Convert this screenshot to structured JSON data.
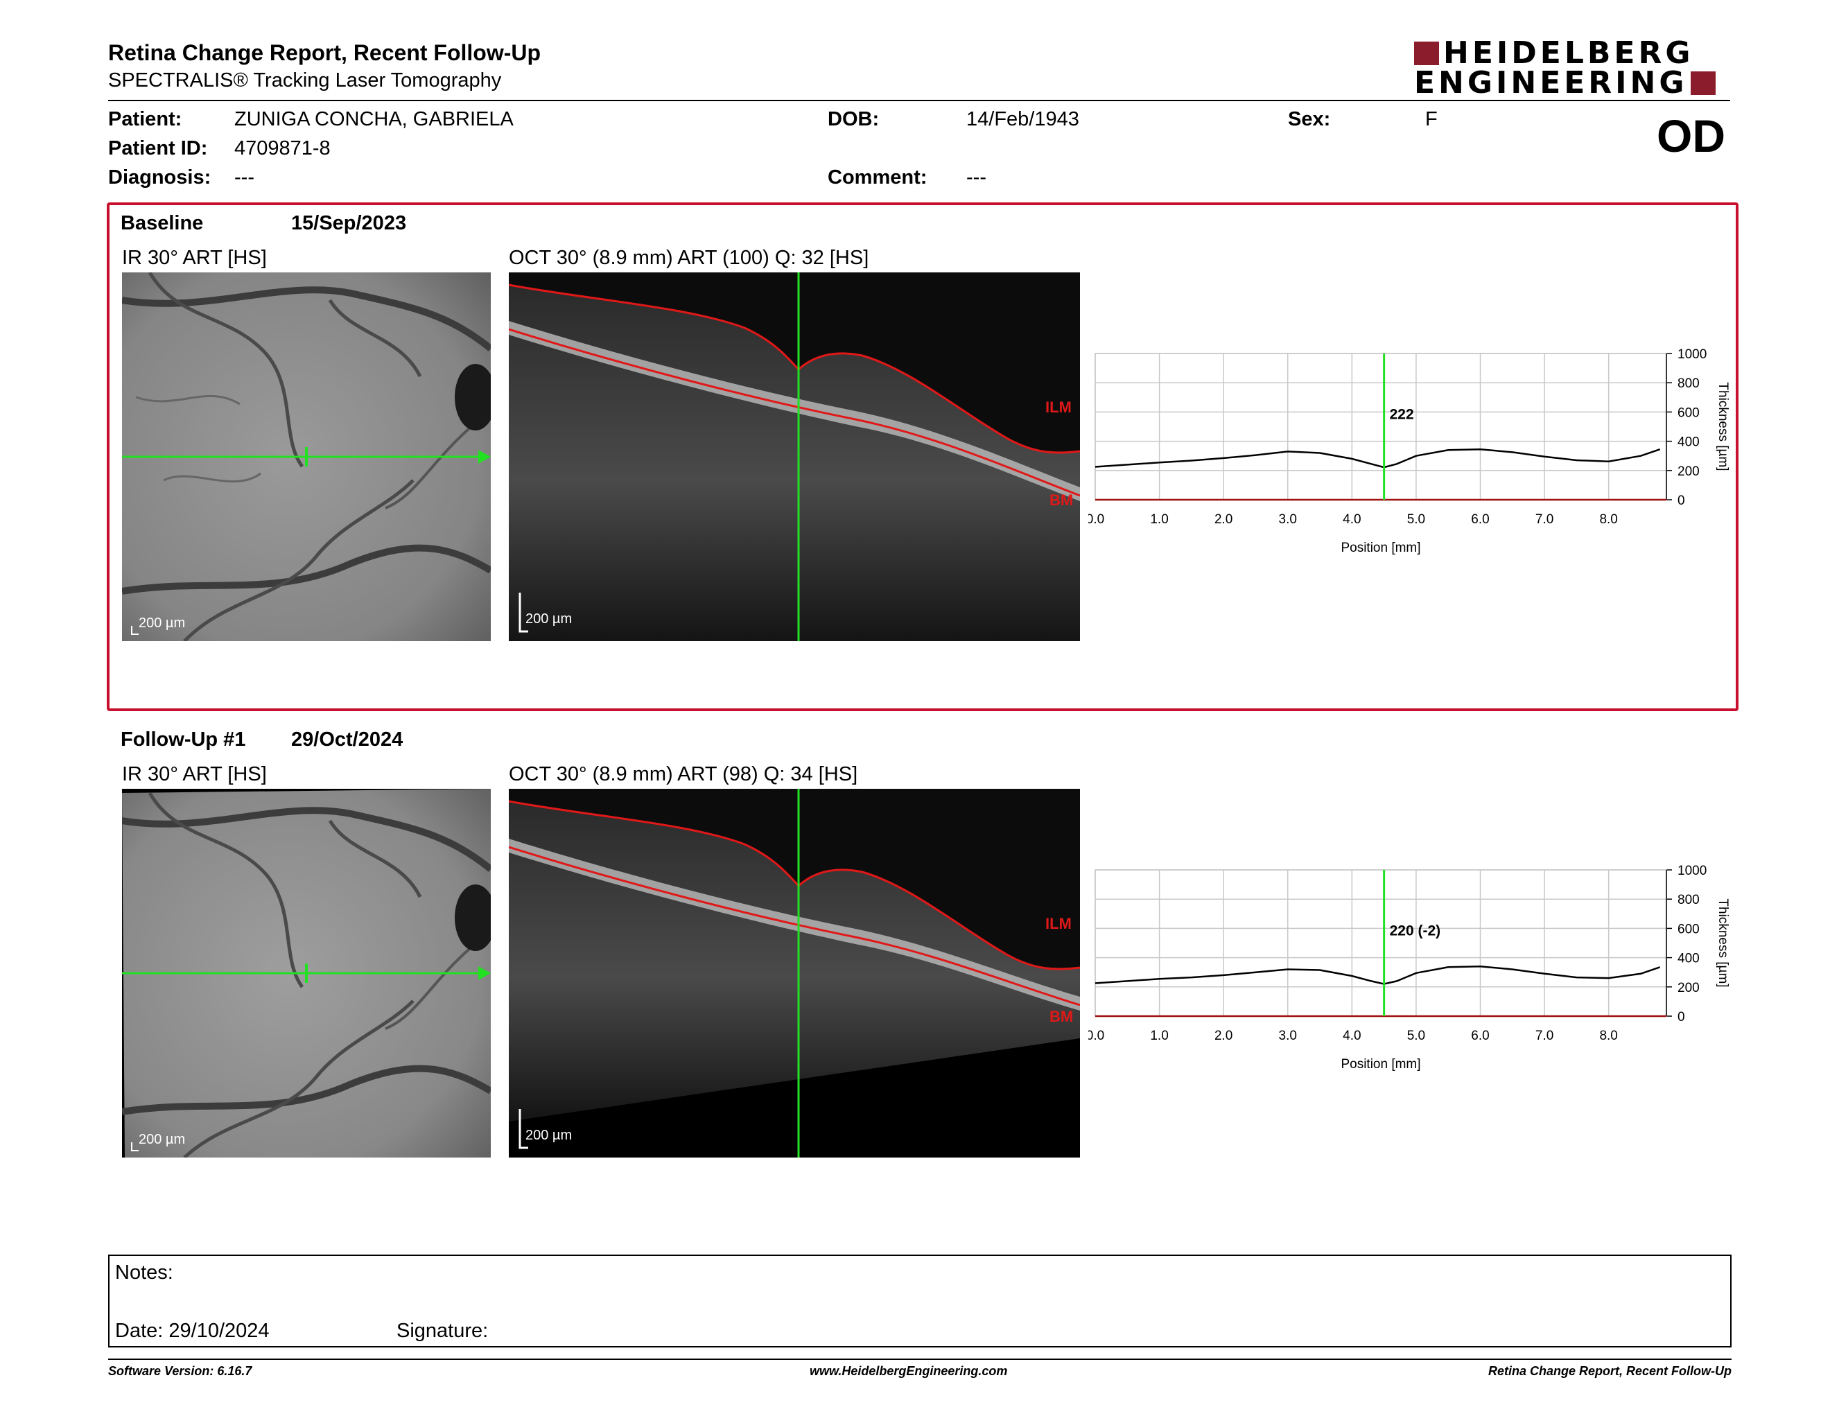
{
  "header": {
    "title": "Retina Change Report, Recent Follow-Up",
    "subtitle": "SPECTRALIS® Tracking Laser Tomography",
    "logo_line1": "HEIDELBERG",
    "logo_line2": "ENGINEERING",
    "eye": "OD"
  },
  "patient": {
    "patient_label": "Patient:",
    "patient_value": "ZUNIGA CONCHA, GABRIELA",
    "id_label": "Patient ID:",
    "id_value": "4709871-8",
    "diagnosis_label": "Diagnosis:",
    "diagnosis_value": "---",
    "dob_label": "DOB:",
    "dob_value": "14/Feb/1943",
    "comment_label": "Comment:",
    "comment_value": "---",
    "sex_label": "Sex:",
    "sex_value": "F"
  },
  "sections": [
    {
      "label": "Baseline",
      "date": "15/Sep/2023",
      "ir_title": "IR 30° ART [HS]",
      "oct_title": "OCT 30° (8.9 mm) ART (100) Q: 32 [HS]",
      "scale": "200 µm",
      "ilm": "ILM",
      "bm": "BM",
      "marker_label": "222"
    },
    {
      "label": "Follow-Up #1",
      "date": "29/Oct/2024",
      "ir_title": "IR 30° ART [HS]",
      "oct_title": "OCT 30° (8.9 mm) ART (98) Q: 34 [HS]",
      "scale": "200 µm",
      "ilm": "ILM",
      "bm": "BM",
      "marker_label": "220 (-2)"
    }
  ],
  "chart_data": [
    {
      "type": "line",
      "title": "",
      "xlabel": "Position [mm]",
      "ylabel": "Thickness [µm]",
      "xlim": [
        0,
        8.9
      ],
      "ylim": [
        0,
        1000
      ],
      "xticks": [
        "0.0",
        "1.0",
        "2.0",
        "3.0",
        "4.0",
        "5.0",
        "6.0",
        "7.0",
        "8.0"
      ],
      "yticks": [
        "0",
        "200",
        "400",
        "600",
        "800",
        "1000"
      ],
      "grid": true,
      "marker_x": 4.5,
      "x": [
        0.0,
        0.5,
        1.0,
        1.5,
        2.0,
        2.5,
        3.0,
        3.5,
        4.0,
        4.3,
        4.5,
        4.7,
        5.0,
        5.5,
        6.0,
        6.5,
        7.0,
        7.5,
        8.0,
        8.5,
        8.8
      ],
      "values": [
        225,
        240,
        255,
        268,
        285,
        305,
        330,
        320,
        280,
        245,
        222,
        245,
        300,
        340,
        345,
        325,
        295,
        270,
        262,
        300,
        345
      ],
      "marker_value": 222
    },
    {
      "type": "line",
      "title": "",
      "xlabel": "Position [mm]",
      "ylabel": "Thickness [µm]",
      "xlim": [
        0,
        8.9
      ],
      "ylim": [
        0,
        1000
      ],
      "xticks": [
        "0.0",
        "1.0",
        "2.0",
        "3.0",
        "4.0",
        "5.0",
        "6.0",
        "7.0",
        "8.0"
      ],
      "yticks": [
        "0",
        "200",
        "400",
        "600",
        "800",
        "1000"
      ],
      "grid": true,
      "marker_x": 4.5,
      "x": [
        0.0,
        0.5,
        1.0,
        1.5,
        2.0,
        2.5,
        3.0,
        3.5,
        4.0,
        4.3,
        4.5,
        4.7,
        5.0,
        5.5,
        6.0,
        6.5,
        7.0,
        7.5,
        8.0,
        8.5,
        8.8
      ],
      "values": [
        225,
        240,
        255,
        265,
        280,
        300,
        320,
        315,
        275,
        240,
        220,
        240,
        295,
        335,
        340,
        320,
        290,
        265,
        260,
        290,
        335
      ],
      "marker_value": 220
    }
  ],
  "notes": {
    "notes_label": "Notes:",
    "date_label": "Date: 29/10/2024",
    "signature_label": "Signature:"
  },
  "footer": {
    "software": "Software Version: 6.16.7",
    "url": "www.HeidelbergEngineering.com",
    "report": "Retina Change Report, Recent Follow-Up"
  }
}
